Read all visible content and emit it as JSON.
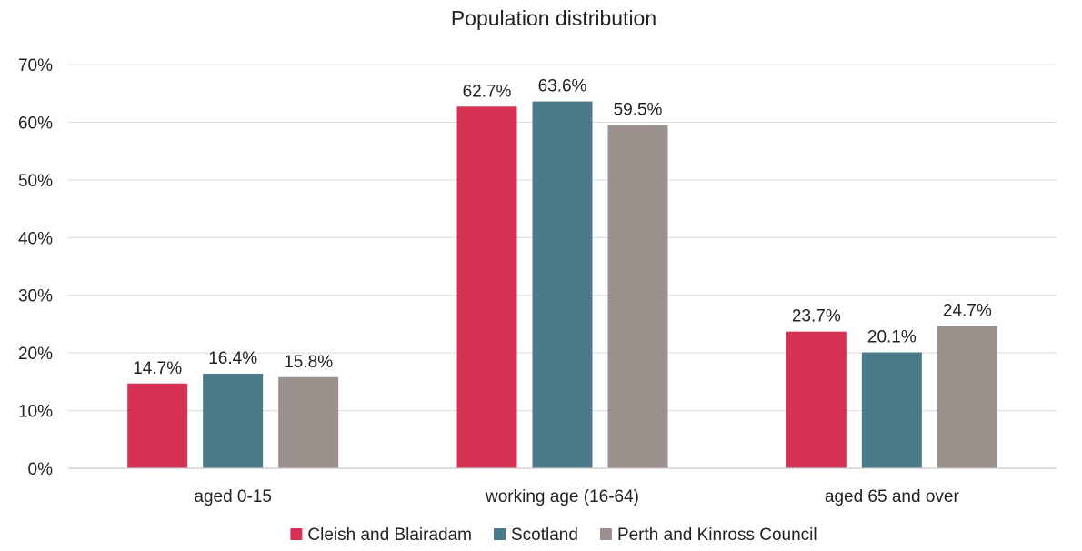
{
  "chart_data": {
    "type": "bar",
    "title": "Population distribution",
    "categories": [
      "aged 0-15",
      "working age (16-64)",
      "aged 65 and over"
    ],
    "series": [
      {
        "name": "Cleish and Blairadam",
        "color": "#d63053",
        "values": [
          14.7,
          62.7,
          23.7
        ],
        "labels": [
          "14.7%",
          "62.7%",
          "23.7%"
        ]
      },
      {
        "name": "Scotland",
        "color": "#4b7b8a",
        "values": [
          16.4,
          63.6,
          20.1
        ],
        "labels": [
          "16.4%",
          "63.6%",
          "20.1%"
        ]
      },
      {
        "name": "Perth and Kinross Council",
        "color": "#9b918c",
        "values": [
          15.8,
          59.5,
          24.7
        ],
        "labels": [
          "15.8%",
          "59.5%",
          "24.7%"
        ]
      }
    ],
    "ylim": [
      0,
      70
    ],
    "yticks": [
      "0%",
      "10%",
      "20%",
      "30%",
      "40%",
      "50%",
      "60%",
      "70%"
    ],
    "grid": true,
    "legend": "bottom-center"
  }
}
